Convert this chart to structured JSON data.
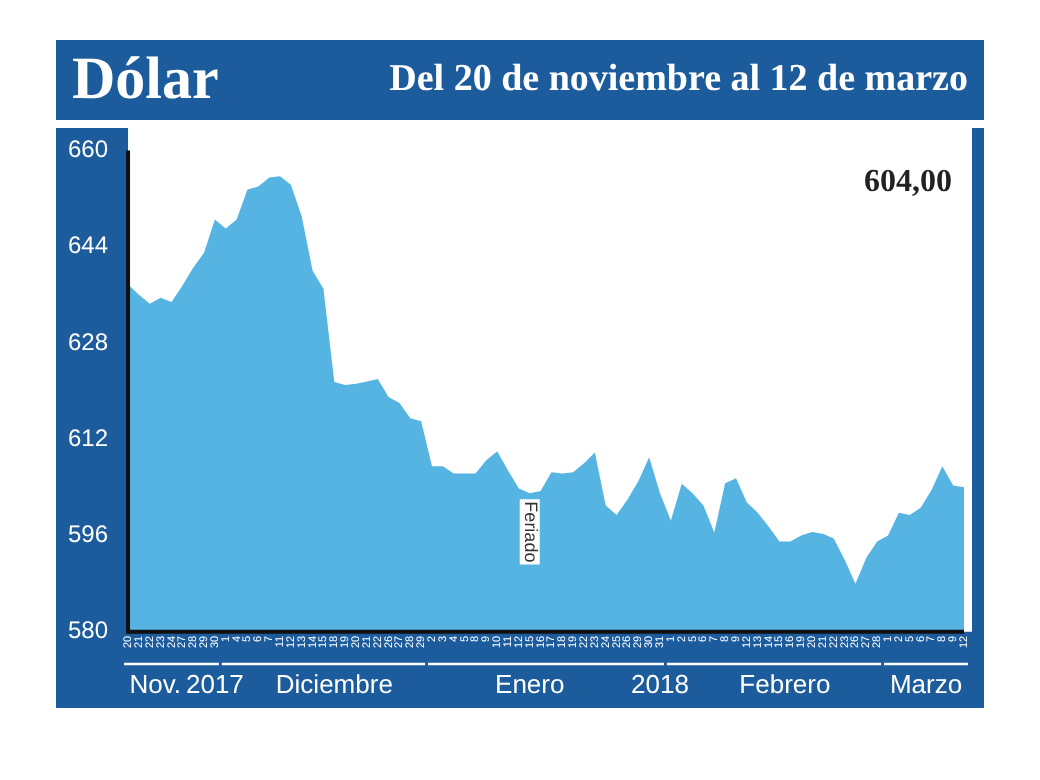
{
  "chart_data": {
    "type": "area",
    "title": "Dólar",
    "subtitle": "Del 20 de noviembre al 12 de marzo",
    "categories": [
      "20",
      "21",
      "22",
      "23",
      "24",
      "27",
      "28",
      "29",
      "30",
      "1",
      "4",
      "5",
      "6",
      "7",
      "11",
      "12",
      "13",
      "14",
      "15",
      "18",
      "19",
      "20",
      "21",
      "22",
      "26",
      "27",
      "28",
      "29",
      "2",
      "3",
      "4",
      "5",
      "8",
      "9",
      "10",
      "11",
      "12",
      "15",
      "16",
      "17",
      "18",
      "19",
      "22",
      "23",
      "24",
      "25",
      "26",
      "29",
      "30",
      "31",
      "1",
      "2",
      "5",
      "6",
      "7",
      "8",
      "9",
      "12",
      "13",
      "14",
      "15",
      "16",
      "19",
      "20",
      "21",
      "22",
      "23",
      "26",
      "27",
      "28",
      "1",
      "2",
      "5",
      "6",
      "7",
      "8",
      "9",
      "12"
    ],
    "series": [
      {
        "color": "#55b4e2",
        "values": [
          637.7,
          636,
          634.5,
          635.5,
          634.8,
          637.5,
          640.5,
          643,
          648.5,
          647,
          648.5,
          653.5,
          654,
          655.5,
          655.7,
          654.3,
          649,
          640,
          637,
          621.5,
          621,
          621.2,
          621.6,
          622,
          619,
          618,
          615.5,
          615,
          607.5,
          607.5,
          606.3,
          606.3,
          606.3,
          608.5,
          610,
          606.8,
          603.8,
          603,
          603.4,
          606.5,
          606.3,
          606.5,
          608,
          609.8,
          601,
          599.4,
          602,
          605,
          609,
          603,
          598.5,
          604.6,
          603,
          601,
          596.5,
          604.7,
          605.5,
          601.5,
          599.8,
          597.5,
          595,
          595,
          596,
          596.6,
          596.3,
          595.5,
          592,
          588,
          592.3,
          595,
          596,
          599.8,
          599.4,
          600.6,
          603.5,
          607.5,
          604.3,
          604
        ]
      }
    ],
    "ylim": [
      580,
      660
    ],
    "yticks": [
      580,
      596,
      612,
      628,
      644,
      660
    ],
    "grid": false,
    "legend": false,
    "annotations": [
      "604,00",
      "Feriado",
      "Nov.",
      "2017",
      "Diciembre",
      "Enero",
      "2018",
      "Febrero",
      "Marzo"
    ]
  }
}
